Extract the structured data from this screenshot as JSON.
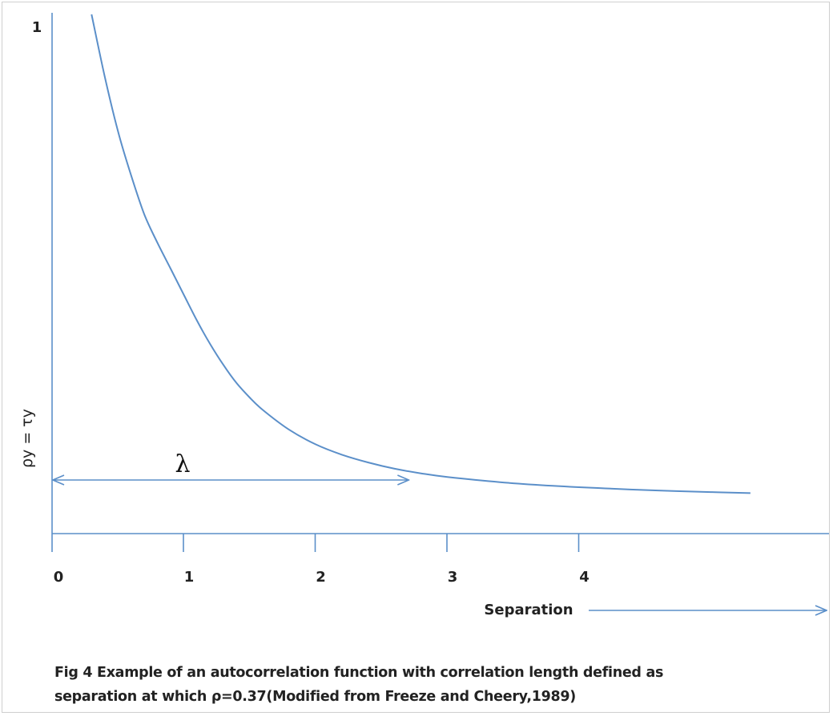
{
  "chart_data": {
    "type": "line",
    "title": "",
    "xlabel": "Separation",
    "ylabel": "ρy = τy",
    "xlim": [
      0,
      6
    ],
    "ylim": [
      0,
      1
    ],
    "x_ticks": [
      "0",
      "1",
      "2",
      "3",
      "4"
    ],
    "y_ticks": [
      "1"
    ],
    "grid": false,
    "series": [
      {
        "x": [
          0.3,
          0.4,
          0.5,
          0.6,
          0.7,
          0.8,
          0.9,
          1.0,
          1.1,
          1.2,
          1.3,
          1.4,
          1.5,
          1.6,
          1.8,
          2.0,
          2.2,
          2.4,
          2.6,
          2.8,
          3.0,
          3.4,
          3.8,
          4.2,
          4.6,
          5.0,
          5.3
        ],
        "y": [
          1.0,
          0.88,
          0.775,
          0.69,
          0.615,
          0.56,
          0.51,
          0.46,
          0.41,
          0.365,
          0.325,
          0.29,
          0.262,
          0.238,
          0.2,
          0.172,
          0.152,
          0.137,
          0.125,
          0.116,
          0.109,
          0.099,
          0.092,
          0.087,
          0.083,
          0.08,
          0.078
        ]
      }
    ],
    "annotations": [
      {
        "label": "λ",
        "type": "double-arrow",
        "x_start": 0,
        "x_end": 2.3,
        "y": 0.115
      }
    ],
    "line_color": "#5b8fc9"
  },
  "caption": {
    "line1": "Fig 4 Example of an autocorrelation function with correlation length defined as",
    "line2": "separation at which ρ=0.37(Modified from Freeze and Cheery,1989)"
  }
}
